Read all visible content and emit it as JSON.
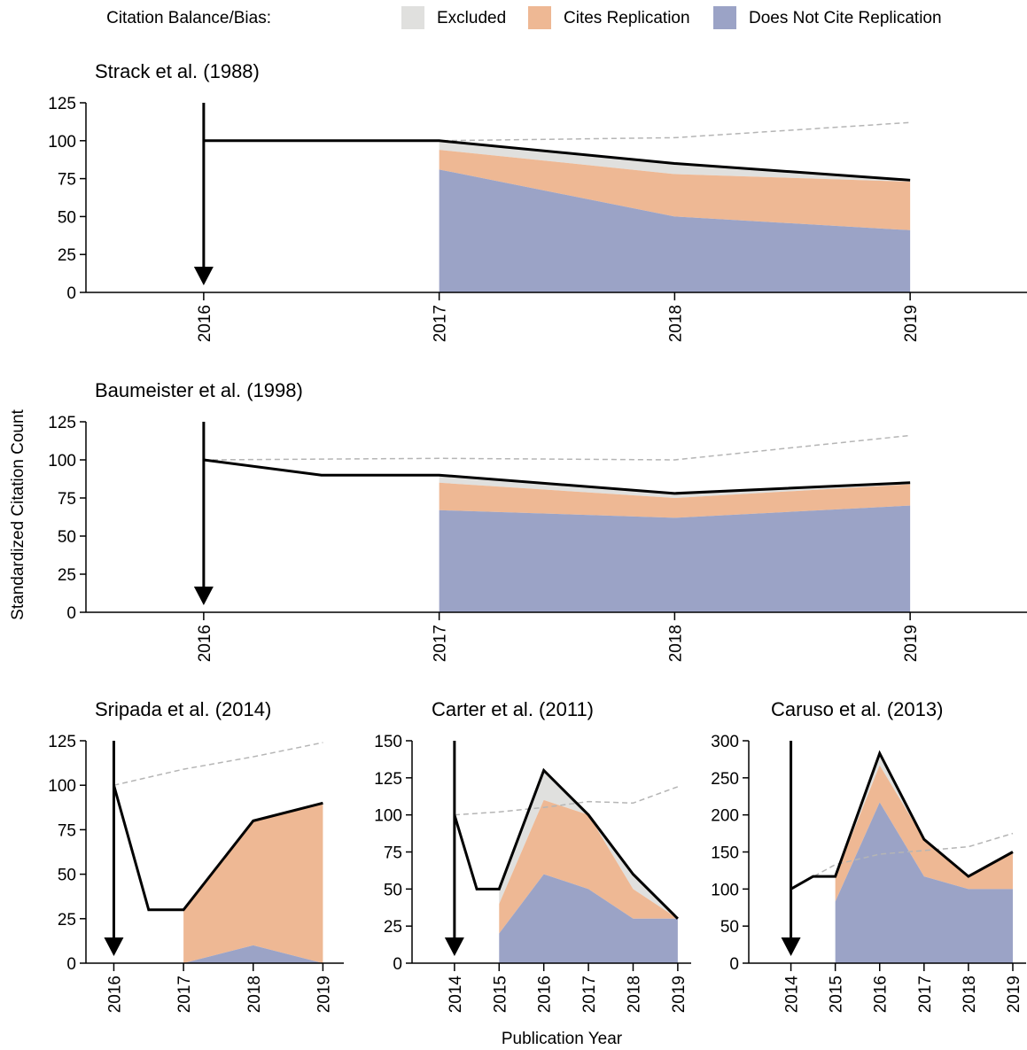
{
  "legend": {
    "label": "Citation Balance/Bias:",
    "items": [
      {
        "name": "Excluded",
        "color": "#e0e0de"
      },
      {
        "name": "Cites Replication",
        "color": "#eeb894"
      },
      {
        "name": "Does Not Cite Replication",
        "color": "#9ba3c6"
      }
    ]
  },
  "ylabel": "Standardized Citation Count",
  "xlabel": "Publication Year",
  "colors": {
    "excluded": "#e0e0de",
    "cites": "#eeb894",
    "not_cite": "#9ba3c6",
    "total_line": "#000000",
    "reference_line": "#b5b5b5"
  },
  "chart_data": [
    {
      "type": "area",
      "title": "Strack et al. (1988)",
      "x_ticks": [
        2016,
        2017,
        2018,
        2019
      ],
      "xlim": [
        2015.5,
        2019.5
      ],
      "ylim": [
        0,
        125
      ],
      "y_ticks": [
        0,
        25,
        50,
        75,
        100,
        125
      ],
      "replication_year": 2016,
      "total": {
        "x": [
          2016,
          2017,
          2018,
          2019
        ],
        "y": [
          100,
          100,
          85,
          74
        ]
      },
      "reference": {
        "x": [
          2016,
          2017,
          2018,
          2019
        ],
        "y": [
          100,
          100,
          102,
          112
        ]
      },
      "stack": {
        "x": [
          2017,
          2018,
          2019
        ],
        "does_not_cite": [
          81,
          50,
          41
        ],
        "cites_replication": [
          13,
          28,
          32
        ],
        "excluded": [
          6,
          7,
          1
        ]
      }
    },
    {
      "type": "area",
      "title": "Baumeister et al. (1998)",
      "x_ticks": [
        2016,
        2017,
        2018,
        2019
      ],
      "xlim": [
        2015.5,
        2019.5
      ],
      "ylim": [
        0,
        125
      ],
      "y_ticks": [
        0,
        25,
        50,
        75,
        100,
        125
      ],
      "replication_year": 2016,
      "total": {
        "x": [
          2016,
          2016.5,
          2017,
          2018,
          2019
        ],
        "y": [
          100,
          90,
          90,
          78,
          85
        ]
      },
      "reference": {
        "x": [
          2016,
          2017,
          2018,
          2019
        ],
        "y": [
          100,
          101,
          100,
          116
        ]
      },
      "stack": {
        "x": [
          2017,
          2018,
          2019
        ],
        "does_not_cite": [
          67,
          62,
          70
        ],
        "cites_replication": [
          18,
          13,
          14
        ],
        "excluded": [
          5,
          3,
          1
        ]
      }
    },
    {
      "type": "area",
      "title": "Sripada et al. (2014)",
      "x_ticks": [
        2016,
        2017,
        2018,
        2019
      ],
      "xlim": [
        2015.6,
        2019.3
      ],
      "ylim": [
        0,
        125
      ],
      "y_ticks": [
        0,
        25,
        50,
        75,
        100,
        125
      ],
      "replication_year": 2016,
      "total": {
        "x": [
          2016,
          2016.5,
          2017,
          2018,
          2019
        ],
        "y": [
          100,
          30,
          30,
          80,
          90
        ]
      },
      "reference": {
        "x": [
          2016,
          2017,
          2018,
          2019
        ],
        "y": [
          100,
          109,
          116,
          124
        ]
      },
      "stack": {
        "x": [
          2017,
          2018,
          2019
        ],
        "does_not_cite": [
          0,
          10,
          0
        ],
        "cites_replication": [
          30,
          70,
          90
        ],
        "excluded": [
          0,
          0,
          0
        ]
      }
    },
    {
      "type": "area",
      "title": "Carter et al. (2011)",
      "x_ticks": [
        2014,
        2015,
        2016,
        2017,
        2018,
        2019
      ],
      "xlim": [
        2013.05,
        2019.3
      ],
      "ylim": [
        0,
        150
      ],
      "y_ticks": [
        0,
        25,
        50,
        75,
        100,
        125,
        150
      ],
      "replication_year": 2014,
      "total": {
        "x": [
          2014,
          2014.5,
          2015,
          2016,
          2017,
          2018,
          2019
        ],
        "y": [
          100,
          50,
          50,
          130,
          100,
          60,
          30
        ]
      },
      "reference": {
        "x": [
          2014,
          2015,
          2016,
          2017,
          2018,
          2019
        ],
        "y": [
          100,
          102,
          105,
          109,
          108,
          119
        ]
      },
      "stack": {
        "x": [
          2015,
          2016,
          2017,
          2018,
          2019
        ],
        "does_not_cite": [
          20,
          60,
          50,
          30,
          30
        ],
        "cites_replication": [
          20,
          50,
          50,
          20,
          0
        ],
        "excluded": [
          10,
          20,
          0,
          10,
          0
        ]
      }
    },
    {
      "type": "area",
      "title": "Caruso et al. (2013)",
      "x_ticks": [
        2014,
        2015,
        2016,
        2017,
        2018,
        2019
      ],
      "xlim": [
        2013.05,
        2019.3
      ],
      "ylim": [
        0,
        300
      ],
      "y_ticks": [
        0,
        50,
        100,
        150,
        200,
        250,
        300
      ],
      "replication_year": 2014,
      "total": {
        "x": [
          2014,
          2014.5,
          2015,
          2016,
          2017,
          2018,
          2019
        ],
        "y": [
          100,
          117,
          117,
          283,
          167,
          117,
          150
        ]
      },
      "reference": {
        "x": [
          2014,
          2015,
          2016,
          2017,
          2018,
          2019
        ],
        "y": [
          100,
          133,
          147,
          152,
          157,
          175
        ]
      },
      "stack": {
        "x": [
          2015,
          2016,
          2017,
          2018,
          2019
        ],
        "does_not_cite": [
          83,
          217,
          117,
          100,
          100
        ],
        "cites_replication": [
          34,
          50,
          50,
          17,
          50
        ],
        "excluded": [
          0,
          16,
          0,
          0,
          0
        ]
      }
    }
  ]
}
